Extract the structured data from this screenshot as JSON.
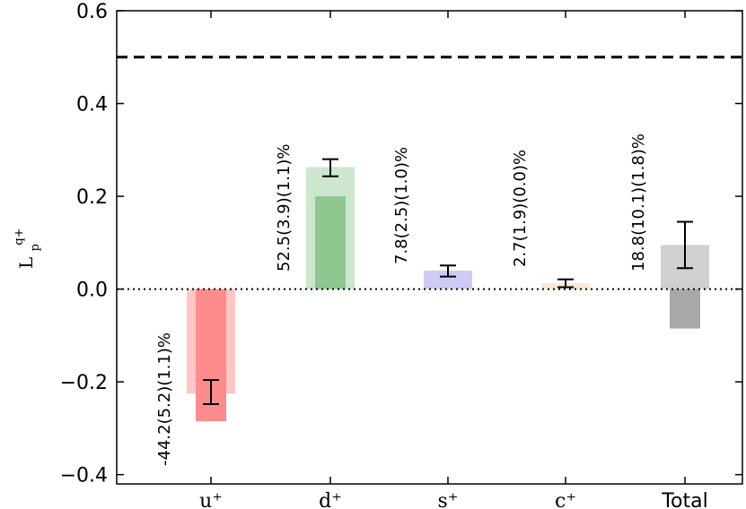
{
  "chart_data": {
    "type": "bar",
    "ylabel": {
      "base": "L",
      "superscript": "q+",
      "subscript": "p"
    },
    "ylim": [
      -0.42,
      0.6
    ],
    "yticks": [
      -0.4,
      -0.2,
      0.0,
      0.2,
      0.4,
      0.6
    ],
    "ytick_labels": [
      "−0.4",
      "−0.2",
      "0.0",
      "0.2",
      "0.4",
      "0.6"
    ],
    "categories": [
      "u⁺",
      "d⁺",
      "s⁺",
      "c⁺",
      "Total"
    ],
    "reference_line": {
      "y": 0.5,
      "style": "dashed"
    },
    "zero_line": {
      "y": 0.0,
      "style": "dotted"
    },
    "grid": false,
    "series": [
      {
        "role": "wide-light",
        "values": [
          -0.225,
          0.263,
          0.04,
          0.013,
          0.095
        ],
        "errors_low": [
          -0.248,
          0.243,
          0.027,
          0.004,
          0.045
        ],
        "errors_high": [
          -0.196,
          0.28,
          0.051,
          0.021,
          0.145
        ]
      },
      {
        "role": "narrow-dark",
        "values": [
          -0.285,
          0.2,
          0.0,
          0.0,
          -0.085
        ]
      }
    ],
    "bar_colors": {
      "light": [
        "#ffc6c6",
        "#cde6cd",
        "#ccccf5",
        "#f9e9d4",
        "#d0d0d0"
      ],
      "dark": [
        "#ff8c8c",
        "#8fc68f",
        "#9b9bef",
        "#f1d3aa",
        "#a8a8a8"
      ]
    },
    "annotations": [
      "-44.2(5.2)(1.1)%",
      "52.5(3.9)(1.1)%",
      "7.8(2.5)(1.0)%",
      "2.7(1.9)(0.0)%",
      "18.8(10.1)(1.8)%"
    ]
  }
}
